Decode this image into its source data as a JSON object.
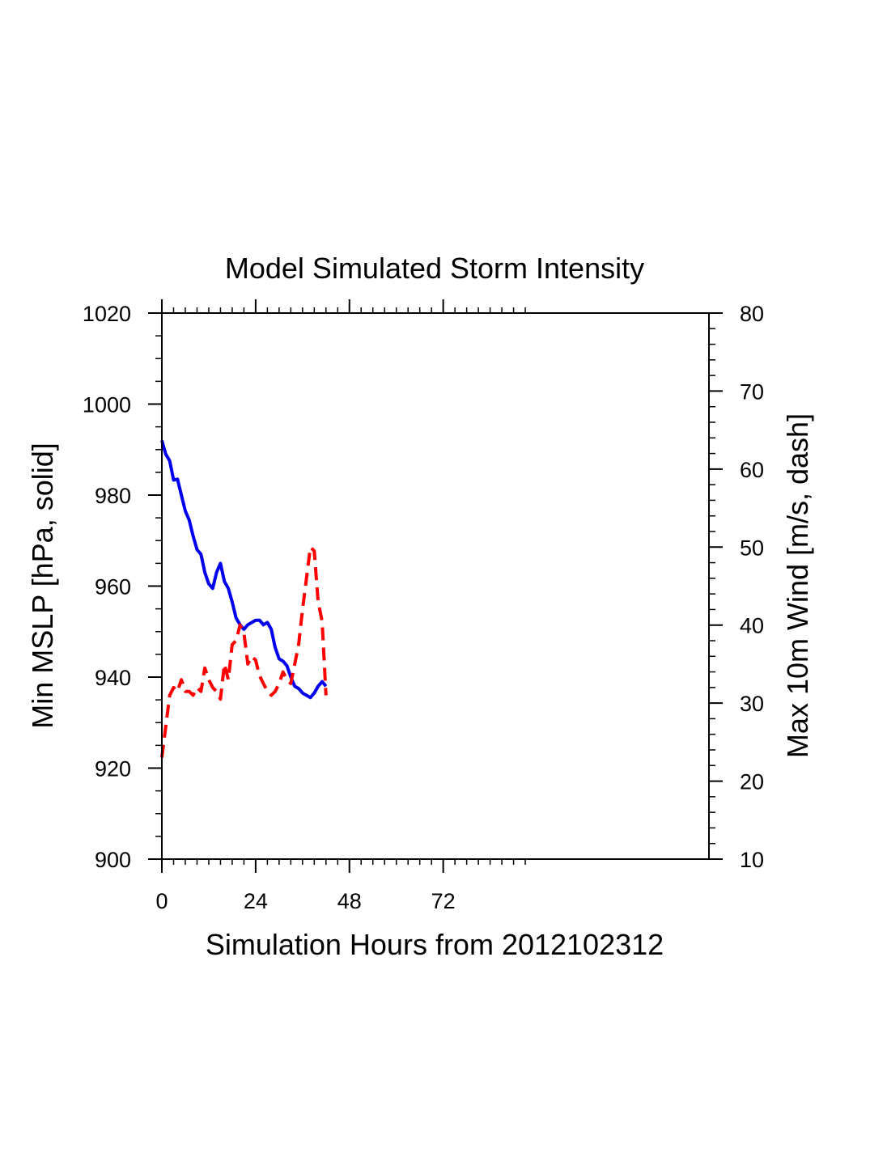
{
  "chart_data": {
    "type": "line",
    "title": "Model Simulated Storm Intensity",
    "xlabel": "Simulation Hours from 2012102312",
    "ylabel_left": "Min MSLP  [hPa, solid]",
    "ylabel_right": "Max 10m Wind  [m/s, dash]",
    "xlim": [
      0,
      140
    ],
    "ylim_left": [
      900,
      1020
    ],
    "ylim_right": [
      10,
      80
    ],
    "x_ticks": [
      0,
      24,
      48,
      72
    ],
    "y_ticks_left": [
      900,
      920,
      940,
      960,
      980,
      1000,
      1020
    ],
    "y_ticks_right": [
      10,
      20,
      30,
      40,
      50,
      60,
      70,
      80
    ],
    "grid": false,
    "legend": "none",
    "series": [
      {
        "axis": "left",
        "style": "solid",
        "color": "#0000ee",
        "x": [
          0,
          1,
          2,
          3,
          4,
          5,
          6,
          7,
          8,
          9,
          10,
          11,
          12,
          13,
          14,
          15,
          16,
          17,
          18,
          19,
          20,
          21,
          22,
          23,
          24,
          25,
          26,
          27,
          28,
          29,
          30,
          31,
          32,
          33,
          34,
          35,
          36,
          37,
          38,
          39,
          40,
          41,
          42
        ],
        "values": [
          992,
          989,
          987.5,
          983.3,
          983.5,
          980,
          976.5,
          974.5,
          971,
          968,
          967,
          963,
          960.5,
          959.5,
          963,
          965,
          961,
          959.5,
          956.5,
          953,
          951.5,
          950.5,
          951.5,
          952,
          952.5,
          952.5,
          951.5,
          952,
          950.5,
          946.5,
          944,
          943.5,
          942.5,
          940,
          938,
          937.5,
          936.5,
          936,
          935.5,
          936.5,
          938,
          939,
          938
        ]
      },
      {
        "axis": "right",
        "style": "dash",
        "color": "#ff0000",
        "x": [
          0,
          1,
          2,
          3,
          4,
          5,
          6,
          7,
          8,
          9,
          10,
          11,
          12,
          13,
          14,
          15,
          16,
          17,
          18,
          19,
          20,
          21,
          22,
          23,
          24,
          25,
          26,
          27,
          28,
          29,
          30,
          31,
          32,
          33,
          34,
          35,
          36,
          37,
          38,
          39,
          40,
          41,
          42
        ],
        "values": [
          23,
          27,
          31,
          32,
          31.5,
          33,
          31.5,
          31.5,
          31,
          32,
          31.5,
          34.5,
          33,
          32,
          31.5,
          30.5,
          35,
          33,
          37.5,
          38,
          40,
          39,
          35,
          36,
          35.5,
          33.5,
          32.5,
          31.5,
          31,
          31.5,
          32.5,
          34,
          33,
          32.5,
          35,
          37.5,
          42,
          46,
          50,
          49.5,
          43,
          40.5,
          31
        ]
      }
    ]
  }
}
